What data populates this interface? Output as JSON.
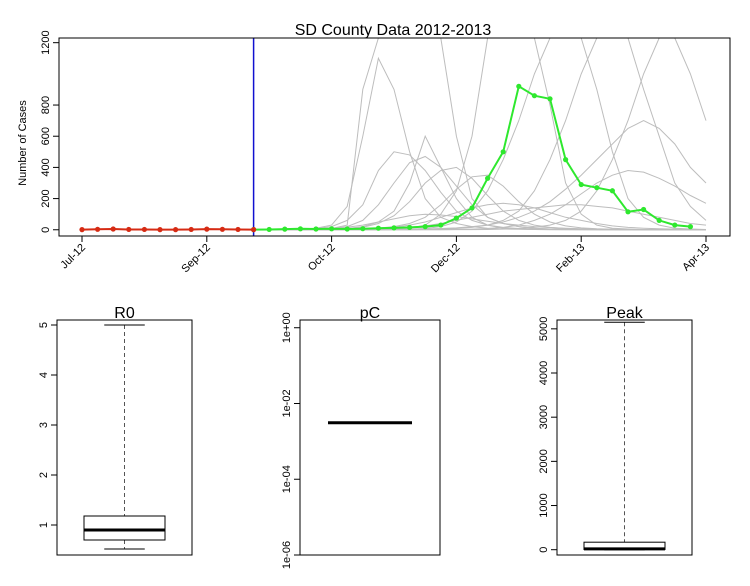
{
  "chart_data": [
    {
      "type": "line",
      "title": "SD County Data 2012-2013",
      "xlabel": "",
      "ylabel": "Number of Cases",
      "ylim": [
        -40,
        1230
      ],
      "grid": false,
      "x_tick_labels": [
        "Jul-12",
        "Sep-12",
        "Oct-12",
        "Dec-12",
        "Feb-13",
        "Apr-13"
      ],
      "y_tick_labels": [
        "0",
        "200",
        "400",
        "600",
        "800",
        "1200"
      ],
      "y_ticks": [
        0,
        200,
        400,
        600,
        800,
        1200
      ],
      "cutoff_week": 11,
      "colors": {
        "observed": "#d62b14",
        "forecast": "#2ee82e",
        "cutoff": "#1010d0",
        "simulations": "#bdbdbd"
      },
      "series": [
        {
          "values": [
            1,
            3,
            5,
            2,
            2,
            1,
            1,
            2,
            4,
            3,
            2,
            1
          ]
        },
        {
          "values": [
            1,
            2,
            4,
            6,
            5,
            6,
            5,
            7,
            10,
            12,
            15,
            20,
            30,
            75,
            140,
            330,
            500,
            920,
            860,
            840,
            450,
            290,
            270,
            250,
            115,
            130,
            60,
            30,
            20
          ]
        }
      ],
      "simulation_series": [
        [
          0,
          1,
          2,
          3,
          5,
          8,
          30,
          900,
          1230,
          1230,
          1230,
          1230,
          1230,
          600,
          200,
          80,
          40,
          20,
          10,
          5,
          3,
          2,
          1,
          1,
          1,
          1,
          1,
          0,
          0,
          0
        ],
        [
          0,
          1,
          2,
          5,
          10,
          30,
          150,
          600,
          1100,
          900,
          500,
          200,
          80,
          40,
          20,
          10,
          5,
          3,
          2,
          1,
          1,
          1,
          1,
          1,
          0,
          0,
          0,
          0,
          0,
          0
        ],
        [
          0,
          1,
          2,
          4,
          8,
          20,
          60,
          160,
          380,
          500,
          480,
          380,
          240,
          120,
          60,
          30,
          15,
          8,
          4,
          2,
          1,
          1,
          1,
          1,
          0,
          0,
          0,
          0,
          0,
          0
        ],
        [
          0,
          0,
          1,
          2,
          4,
          8,
          20,
          60,
          160,
          300,
          430,
          470,
          400,
          280,
          160,
          80,
          40,
          20,
          10,
          5,
          3,
          2,
          1,
          1,
          1,
          0,
          0,
          0,
          0,
          0
        ],
        [
          0,
          0,
          1,
          1,
          2,
          4,
          8,
          16,
          40,
          90,
          180,
          300,
          380,
          400,
          330,
          220,
          120,
          60,
          30,
          15,
          8,
          4,
          2,
          1,
          1,
          0,
          0,
          0,
          0,
          0
        ],
        [
          0,
          0,
          0,
          1,
          1,
          2,
          3,
          5,
          10,
          20,
          40,
          80,
          160,
          260,
          340,
          350,
          280,
          180,
          100,
          50,
          25,
          12,
          6,
          3,
          2,
          1,
          1,
          0,
          0,
          0
        ],
        [
          0,
          0,
          0,
          0,
          1,
          1,
          2,
          4,
          8,
          16,
          30,
          50,
          80,
          110,
          140,
          160,
          170,
          160,
          140,
          110,
          80,
          60,
          40,
          25,
          15,
          10,
          6,
          4,
          2,
          1
        ],
        [
          0,
          0,
          0,
          0,
          0,
          1,
          1,
          2,
          4,
          8,
          15,
          25,
          40,
          60,
          80,
          100,
          120,
          130,
          140,
          150,
          160,
          160,
          150,
          140,
          120,
          100,
          80,
          60,
          40,
          30
        ],
        [
          0,
          0,
          0,
          0,
          0,
          0,
          0,
          1,
          1,
          2,
          3,
          5,
          8,
          12,
          20,
          30,
          50,
          80,
          120,
          180,
          260,
          350,
          450,
          550,
          650,
          700,
          650,
          550,
          400,
          300
        ],
        [
          0,
          0,
          0,
          0,
          0,
          0,
          1,
          2,
          3,
          6,
          10,
          30,
          100,
          250,
          600,
          1230,
          1230,
          1230,
          1230,
          800,
          300,
          100,
          30,
          10,
          5,
          2,
          1,
          1,
          0,
          0
        ],
        [
          0,
          0,
          0,
          0,
          0,
          0,
          0,
          1,
          1,
          2,
          4,
          8,
          20,
          50,
          120,
          250,
          450,
          700,
          1000,
          1230,
          1230,
          1230,
          900,
          500,
          200,
          80,
          30,
          10,
          5,
          2
        ],
        [
          0,
          0,
          0,
          0,
          0,
          0,
          0,
          0,
          0,
          1,
          1,
          2,
          4,
          8,
          15,
          30,
          60,
          120,
          250,
          450,
          700,
          1000,
          1230,
          1230,
          1230,
          900,
          600,
          300,
          150,
          60
        ],
        [
          0,
          0,
          0,
          0,
          0,
          0,
          0,
          0,
          0,
          0,
          0,
          1,
          1,
          2,
          4,
          8,
          15,
          30,
          60,
          100,
          160,
          230,
          300,
          350,
          380,
          370,
          330,
          280,
          220,
          170
        ],
        [
          0,
          0,
          0,
          0,
          0,
          0,
          0,
          0,
          0,
          0,
          0,
          0,
          0,
          1,
          1,
          2,
          4,
          8,
          16,
          30,
          60,
          120,
          250,
          450,
          700,
          1000,
          1230,
          1230,
          1000,
          700
        ],
        [
          0,
          0,
          1,
          2,
          4,
          8,
          16,
          30,
          50,
          70,
          90,
          100,
          95,
          85,
          70,
          55,
          40,
          30,
          20,
          14,
          10,
          7,
          5,
          3,
          2,
          1,
          1,
          1,
          0,
          0
        ],
        [
          0,
          0,
          0,
          1,
          2,
          4,
          8,
          20,
          50,
          120,
          300,
          600,
          400,
          200,
          80,
          30,
          10,
          5,
          2,
          1,
          1,
          0,
          0,
          0,
          0,
          0,
          0,
          0,
          0,
          0
        ]
      ]
    },
    {
      "type": "box",
      "title": "R0",
      "y_tick_labels": [
        "1",
        "2",
        "3",
        "4",
        "5"
      ],
      "y_ticks": [
        1,
        2,
        3,
        4,
        5
      ],
      "ylim": [
        0.4,
        5.1
      ],
      "whisker_low": 0.52,
      "q1": 0.7,
      "median": 0.9,
      "q3": 1.18,
      "whisker_high": 5.0
    },
    {
      "type": "box",
      "title": "pC",
      "scale": "log",
      "y_tick_labels": [
        "1e-06",
        "1e-04",
        "1e-02",
        "1e+00"
      ],
      "y_ticks": [
        1e-06,
        0.0001,
        0.01,
        1
      ],
      "ylim": [
        1e-06,
        1.6
      ],
      "median": 0.0031
    },
    {
      "type": "box",
      "title": "Peak",
      "y_tick_labels": [
        "0",
        "1000",
        "2000",
        "3000",
        "4000",
        "5000"
      ],
      "y_ticks": [
        0,
        1000,
        2000,
        3000,
        4000,
        5000
      ],
      "ylim": [
        -120,
        5200
      ],
      "whisker_low": 0,
      "q1": 5,
      "median": 20,
      "q3": 170,
      "whisker_high": 5150
    }
  ]
}
